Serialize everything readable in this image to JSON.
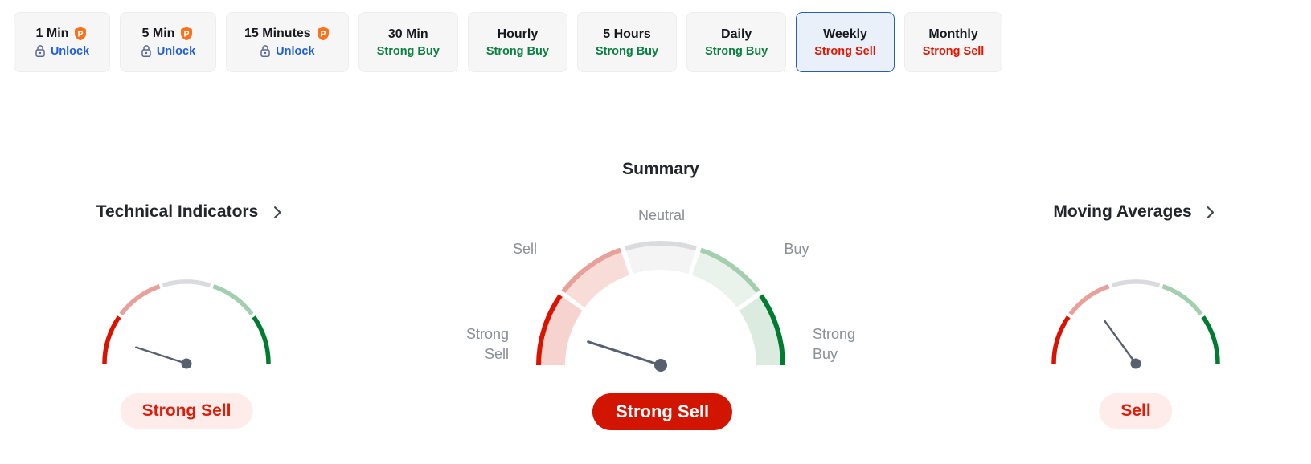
{
  "tabs": {
    "items": [
      {
        "label": "1 Min",
        "locked": true,
        "pro_badge": "P",
        "action": "Unlock"
      },
      {
        "label": "5 Min",
        "locked": true,
        "pro_badge": "P",
        "action": "Unlock"
      },
      {
        "label": "15 Minutes",
        "locked": true,
        "pro_badge": "P",
        "action": "Unlock"
      },
      {
        "label": "30 Min",
        "signal": "Strong Buy",
        "signal_color": "green"
      },
      {
        "label": "Hourly",
        "signal": "Strong Buy",
        "signal_color": "green"
      },
      {
        "label": "5 Hours",
        "signal": "Strong Buy",
        "signal_color": "green"
      },
      {
        "label": "Daily",
        "signal": "Strong Buy",
        "signal_color": "green"
      },
      {
        "label": "Weekly",
        "signal": "Strong Sell",
        "signal_color": "red",
        "selected": true
      },
      {
        "label": "Monthly",
        "signal": "Strong Sell",
        "signal_color": "red"
      }
    ]
  },
  "chart_data": [
    {
      "type": "gauge",
      "id": "technical",
      "title": "Technical Indicators",
      "scale": [
        "Strong Sell",
        "Sell",
        "Neutral",
        "Buy",
        "Strong Buy"
      ],
      "reading": "Strong Sell",
      "needle_angle_deg": 162,
      "segment_arc_deg": 36
    },
    {
      "type": "gauge",
      "id": "summary",
      "title": "Summary",
      "scale": [
        "Strong Sell",
        "Sell",
        "Neutral",
        "Buy",
        "Strong Buy"
      ],
      "reading": "Strong Sell",
      "needle_angle_deg": 162,
      "segment_arc_deg": 36
    },
    {
      "type": "gauge",
      "id": "moving_averages",
      "title": "Moving Averages",
      "scale": [
        "Strong Sell",
        "Sell",
        "Neutral",
        "Buy",
        "Strong Buy"
      ],
      "reading": "Sell",
      "needle_angle_deg": 126,
      "segment_arc_deg": 36
    }
  ],
  "colors": {
    "accent_blue": "#2b5fae",
    "buy_green": "#0a7f3f",
    "sell_red": "#e41500",
    "unlock_blue": "#1f5fd6",
    "badge_solid_bg": "#d21500",
    "badge_soft_bg": "#fdece9",
    "badge_soft_text": "#dd1c09",
    "needle": "#57606e",
    "pro_badge_orange": "#f7731d",
    "lock_icon_slate": "#5a6a8f",
    "segments_outer": [
      "#da1300",
      "#e7a09a",
      "#dadbdc",
      "#a3cfae",
      "#007c30"
    ],
    "segments_inner": [
      "#f6d3ce",
      "#f8dcd7",
      "#f4f4f5",
      "#eaf2ec",
      "#dcebdf"
    ]
  }
}
